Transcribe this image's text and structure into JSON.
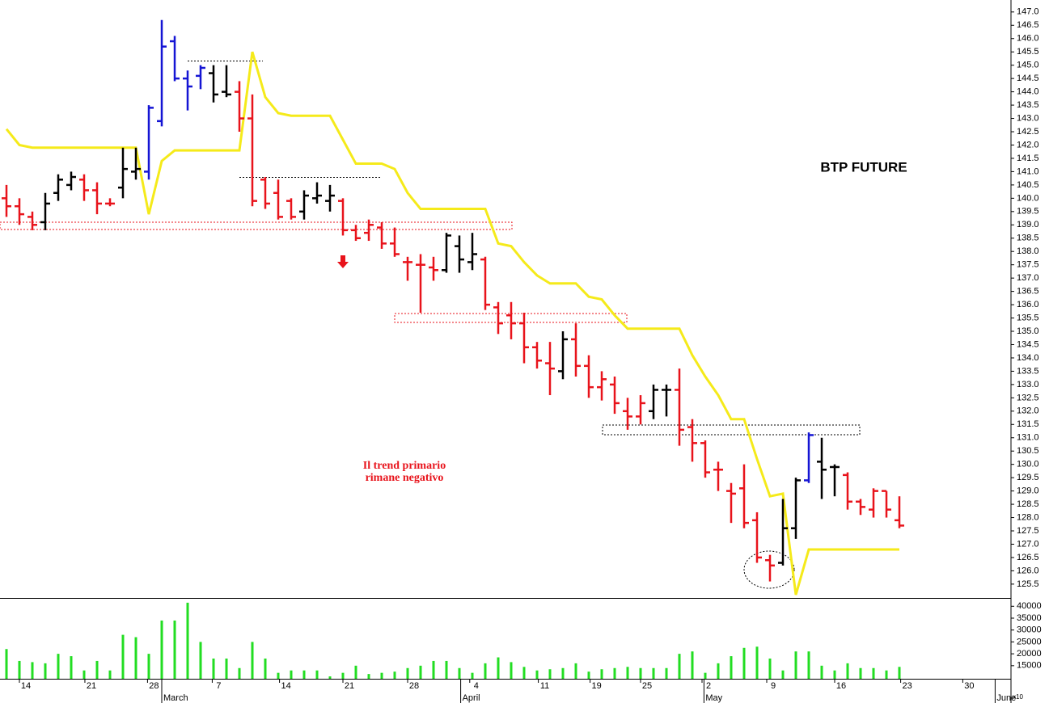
{
  "chart_data": {
    "type": "ohlc",
    "title": "BTP FUTURE",
    "annotation": [
      "Il trend primario",
      "rimane negativo"
    ],
    "xlim": [
      -0.5,
      77.625
    ],
    "xticks": [
      {
        "value": 1.5,
        "label": "14"
      },
      {
        "value": 6.56,
        "label": "21"
      },
      {
        "value": 11.4,
        "label": "28"
      },
      {
        "value": 16.4,
        "label": "7"
      },
      {
        "value": 21.6,
        "label": "14"
      },
      {
        "value": 26.5,
        "label": "21"
      },
      {
        "value": 31.5,
        "label": "28"
      },
      {
        "value": 36.3,
        "label": "4"
      },
      {
        "value": 41.6,
        "label": "11"
      },
      {
        "value": 45.6,
        "label": "19"
      },
      {
        "value": 49.5,
        "label": "25"
      },
      {
        "value": 54.25,
        "label": "2"
      },
      {
        "value": 59.25,
        "label": "9"
      },
      {
        "value": 64.5,
        "label": "16"
      },
      {
        "value": 69.6,
        "label": "23"
      },
      {
        "value": 74.4,
        "label": "30"
      }
    ],
    "months": [
      {
        "value": 12,
        "label": "March"
      },
      {
        "value": 35.1,
        "label": "April"
      },
      {
        "value": 53.9,
        "label": "May"
      },
      {
        "value": 76.4,
        "label": "June"
      }
    ],
    "ylim": [
      124.98,
      147.45
    ],
    "yticks": [
      125.5,
      {
        "value": 126,
        "label": "126.0"
      },
      126.5,
      {
        "value": 127,
        "label": "127.0"
      },
      127.5,
      {
        "value": 128,
        "label": "128.0"
      },
      128.5,
      {
        "value": 129,
        "label": "129.0"
      },
      129.5,
      {
        "value": 130,
        "label": "130.0"
      },
      130.5,
      {
        "value": 131,
        "label": "131.0"
      },
      131.5,
      {
        "value": 132,
        "label": "132.0"
      },
      132.5,
      {
        "value": 133,
        "label": "133.0"
      },
      133.5,
      {
        "value": 134,
        "label": "134.0"
      },
      134.5,
      {
        "value": 135,
        "label": "135.0"
      },
      135.5,
      {
        "value": 136,
        "label": "136.0"
      },
      136.5,
      {
        "value": 137,
        "label": "137.0"
      },
      137.5,
      {
        "value": 138,
        "label": "138.0"
      },
      138.5,
      {
        "value": 139,
        "label": "139.0"
      },
      139.5,
      {
        "value": 140,
        "label": "140.0"
      },
      140.5,
      {
        "value": 141,
        "label": "141.0"
      },
      141.5,
      {
        "value": 142,
        "label": "142.0"
      },
      142.5,
      {
        "value": 143,
        "label": "143.0"
      },
      143.5,
      {
        "value": 144,
        "label": "144.0"
      },
      144.5,
      {
        "value": 145,
        "label": "145.0"
      },
      145.5,
      {
        "value": 146,
        "label": "146.0"
      },
      146.5,
      {
        "value": 147,
        "label": "147.0"
      }
    ],
    "open": [
      140.0,
      139.7,
      139.3,
      139.1,
      140.2,
      140.5,
      140.7,
      140.3,
      139.8,
      140.4,
      141.0,
      141.0,
      142.9,
      145.9,
      144.5,
      144.6,
      144.7,
      144.0,
      144.0,
      143.0,
      140.7,
      140.2,
      139.9,
      139.5,
      140.0,
      139.9,
      139.9,
      138.8,
      138.7,
      138.9,
      138.3,
      137.6,
      137.5,
      137.4,
      137.3,
      138.2,
      137.6,
      137.7,
      135.9,
      135.6,
      135.3,
      134.4,
      133.8,
      133.5,
      134.7,
      133.7,
      132.9,
      133.0,
      132.0,
      131.8,
      132.0,
      132.8,
      132.8,
      131.4,
      130.8,
      129.8,
      129.0,
      129.1,
      127.9,
      126.4,
      126.3,
      127.6,
      129.4,
      130.1,
      129.9,
      129.6,
      128.6,
      128.3,
      129.0,
      127.9
    ],
    "high": [
      140.5,
      140.0,
      139.5,
      140.2,
      140.9,
      141.0,
      140.9,
      140.6,
      140.0,
      141.9,
      141.9,
      143.5,
      146.7,
      146.1,
      144.8,
      145.0,
      145.0,
      145.0,
      144.4,
      143.9,
      140.8,
      140.7,
      140.0,
      140.3,
      140.6,
      140.5,
      140.0,
      139.0,
      139.2,
      139.1,
      138.9,
      137.8,
      137.9,
      137.8,
      138.7,
      138.6,
      138.7,
      137.8,
      136.1,
      136.1,
      135.7,
      134.6,
      134.6,
      135.0,
      135.3,
      134.1,
      133.5,
      133.3,
      132.5,
      132.6,
      133.0,
      133.0,
      133.6,
      131.7,
      130.9,
      130.1,
      129.3,
      130.0,
      128.2,
      126.6,
      128.7,
      129.5,
      131.2,
      131.0,
      130.0,
      129.7,
      128.7,
      129.1,
      129.0,
      128.8
    ],
    "low": [
      139.3,
      139.0,
      138.8,
      138.8,
      139.9,
      140.3,
      139.9,
      139.4,
      139.7,
      140.0,
      140.7,
      140.7,
      142.7,
      144.4,
      143.3,
      144.1,
      143.6,
      143.8,
      142.5,
      139.7,
      139.6,
      139.2,
      139.2,
      139.2,
      139.8,
      139.5,
      138.6,
      138.4,
      138.4,
      138.1,
      137.8,
      136.9,
      135.7,
      136.9,
      137.2,
      137.2,
      137.3,
      135.8,
      134.9,
      134.7,
      133.8,
      133.6,
      132.6,
      133.2,
      133.3,
      132.5,
      132.4,
      131.9,
      131.3,
      131.5,
      131.7,
      131.8,
      130.7,
      130.1,
      129.5,
      129.0,
      127.8,
      127.6,
      126.3,
      125.6,
      126.2,
      127.2,
      129.3,
      128.7,
      128.8,
      128.3,
      128.1,
      128.0,
      128.0,
      127.6
    ],
    "close": [
      139.7,
      139.4,
      139.0,
      139.8,
      140.7,
      140.8,
      140.3,
      139.8,
      139.8,
      141.1,
      141.1,
      143.4,
      145.7,
      144.5,
      144.2,
      144.9,
      143.9,
      143.9,
      143.0,
      139.9,
      139.8,
      139.3,
      139.3,
      140.1,
      140.1,
      140.1,
      138.8,
      138.5,
      139.0,
      138.3,
      137.9,
      137.6,
      137.5,
      137.3,
      138.6,
      137.7,
      137.9,
      136.0,
      135.3,
      135.3,
      134.4,
      133.9,
      133.6,
      134.7,
      133.7,
      132.9,
      133.2,
      132.3,
      131.8,
      132.3,
      132.8,
      132.8,
      131.3,
      130.8,
      129.7,
      129.8,
      128.9,
      127.8,
      126.5,
      126.2,
      127.6,
      129.4,
      131.1,
      129.8,
      129.9,
      128.6,
      128.4,
      129.0,
      128.3,
      127.7
    ],
    "colors": [
      "#e8131b",
      "#e8131b",
      "#e8131b",
      "#000000",
      "#000000",
      "#000000",
      "#e8131b",
      "#e8131b",
      "#e8131b",
      "#000000",
      "#000000",
      "#1515d4",
      "#1515d4",
      "#1515d4",
      "#1515d4",
      "#1515d4",
      "#000000",
      "#000000",
      "#e8131b",
      "#e8131b",
      "#e8131b",
      "#e8131b",
      "#e8131b",
      "#000000",
      "#000000",
      "#000000",
      "#e8131b",
      "#e8131b",
      "#e8131b",
      "#e8131b",
      "#e8131b",
      "#e8131b",
      "#e8131b",
      "#e8131b",
      "#000000",
      "#000000",
      "#000000",
      "#e8131b",
      "#e8131b",
      "#e8131b",
      "#e8131b",
      "#e8131b",
      "#e8131b",
      "#000000",
      "#e8131b",
      "#e8131b",
      "#e8131b",
      "#e8131b",
      "#e8131b",
      "#e8131b",
      "#000000",
      "#000000",
      "#e8131b",
      "#e8131b",
      "#e8131b",
      "#e8131b",
      "#e8131b",
      "#e8131b",
      "#e8131b",
      "#e8131b",
      "#000000",
      "#000000",
      "#1515d4",
      "#000000",
      "#000000",
      "#e8131b",
      "#e8131b",
      "#e8131b",
      "#e8131b",
      "#e8131b"
    ],
    "line": {
      "color": "#f5ea1a",
      "values": [
        142.6,
        142.0,
        141.9,
        141.9,
        141.9,
        141.9,
        141.9,
        141.9,
        141.9,
        141.9,
        141.9,
        139.4,
        141.4,
        141.8,
        141.8,
        141.8,
        141.8,
        141.8,
        141.8,
        145.5,
        143.8,
        143.2,
        143.1,
        143.1,
        143.1,
        143.1,
        142.2,
        141.3,
        141.3,
        141.3,
        141.1,
        140.2,
        139.6,
        139.6,
        139.6,
        139.6,
        139.6,
        139.6,
        138.3,
        138.2,
        137.6,
        137.1,
        136.8,
        136.8,
        136.8,
        136.3,
        136.2,
        135.6,
        135.1,
        135.1,
        135.1,
        135.1,
        135.1,
        134.1,
        133.3,
        132.6,
        131.7,
        131.7,
        130.2,
        128.8,
        128.9,
        125.1,
        126.8,
        126.8,
        126.8,
        126.8,
        126.8,
        126.8,
        126.8,
        126.8
      ]
    },
    "volume": {
      "color": "#22dd22",
      "unit": "x10",
      "ylim": [
        9500,
        43500
      ],
      "yticks": [
        15000,
        20000,
        25000,
        30000,
        35000,
        40000
      ],
      "values": [
        22000,
        17000,
        16500,
        16000,
        20000,
        19000,
        13000,
        17000,
        13000,
        28000,
        27000,
        20000,
        34000,
        34000,
        41500,
        25000,
        18000,
        18000,
        14000,
        25000,
        18000,
        12000,
        13000,
        13000,
        13000,
        10500,
        12000,
        15000,
        11500,
        12000,
        12500,
        14000,
        15000,
        17000,
        17000,
        14000,
        12000,
        16000,
        18500,
        16500,
        14500,
        13000,
        13500,
        14000,
        16000,
        12500,
        13500,
        14000,
        14500,
        14000,
        14000,
        14000,
        20000,
        21000,
        12000,
        16000,
        19000,
        22500,
        23000,
        18000,
        13000,
        21000,
        21000,
        15000,
        13000,
        16000,
        14000,
        14000,
        13000,
        14500
      ]
    }
  }
}
